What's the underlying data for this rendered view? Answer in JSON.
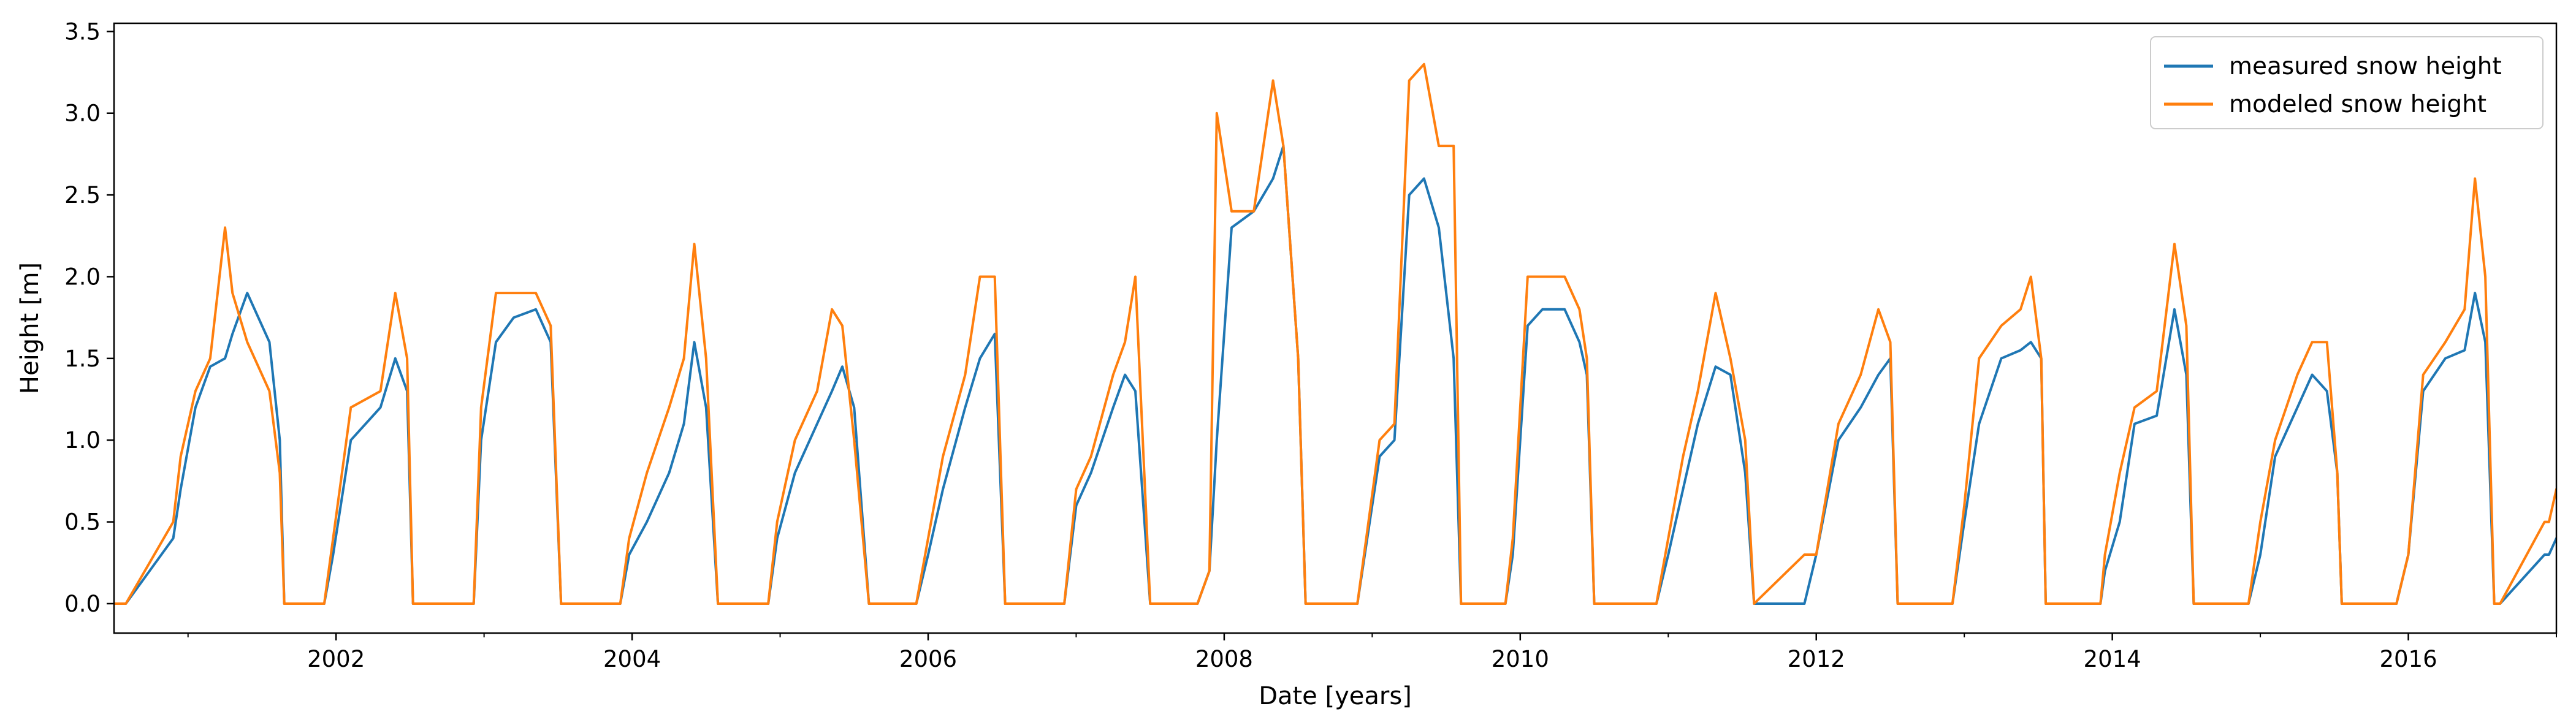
{
  "chart_data": {
    "type": "line",
    "title": "",
    "xlabel": "Date [years]",
    "ylabel": "Height [m]",
    "xlim": [
      2000.5,
      2017.0
    ],
    "ylim": [
      -0.18,
      3.55
    ],
    "x_ticks": [
      2002,
      2004,
      2006,
      2008,
      2010,
      2012,
      2014,
      2016
    ],
    "x_tick_labels": [
      "2002",
      "2004",
      "2006",
      "2008",
      "2010",
      "2012",
      "2014",
      "2016"
    ],
    "y_ticks": [
      0.0,
      0.5,
      1.0,
      1.5,
      2.0,
      2.5,
      3.0,
      3.5
    ],
    "y_tick_labels": [
      "0.0",
      "0.5",
      "1.0",
      "1.5",
      "2.0",
      "2.5",
      "3.0",
      "3.5"
    ],
    "grid": false,
    "legend": {
      "position": "top-right"
    },
    "series": [
      {
        "name": "measured snow height",
        "color": "#1f77b4",
        "x": [
          2000.5,
          2000.58,
          2000.9,
          2000.95,
          2001.05,
          2001.15,
          2001.25,
          2001.3,
          2001.4,
          2001.55,
          2001.62,
          2001.65,
          2001.92,
          2001.98,
          2002.1,
          2002.3,
          2002.4,
          2002.48,
          2002.52,
          2002.93,
          2002.98,
          2003.08,
          2003.2,
          2003.35,
          2003.45,
          2003.52,
          2003.92,
          2003.98,
          2004.1,
          2004.25,
          2004.35,
          2004.42,
          2004.5,
          2004.58,
          2004.92,
          2004.98,
          2005.1,
          2005.25,
          2005.35,
          2005.42,
          2005.5,
          2005.6,
          2005.92,
          2006.0,
          2006.1,
          2006.25,
          2006.35,
          2006.45,
          2006.52,
          2006.92,
          2007.0,
          2007.1,
          2007.25,
          2007.33,
          2007.4,
          2007.5,
          2007.82,
          2007.9,
          2007.95,
          2008.05,
          2008.2,
          2008.33,
          2008.4,
          2008.5,
          2008.55,
          2008.9,
          2009.05,
          2009.15,
          2009.25,
          2009.35,
          2009.45,
          2009.55,
          2009.6,
          2009.9,
          2009.95,
          2010.05,
          2010.15,
          2010.3,
          2010.4,
          2010.45,
          2010.5,
          2010.92,
          2011.0,
          2011.1,
          2011.2,
          2011.32,
          2011.42,
          2011.52,
          2011.58,
          2011.92,
          2012.0,
          2012.15,
          2012.3,
          2012.42,
          2012.5,
          2012.55,
          2012.92,
          2013.0,
          2013.1,
          2013.25,
          2013.38,
          2013.45,
          2013.52,
          2013.55,
          2013.92,
          2013.95,
          2014.05,
          2014.15,
          2014.3,
          2014.42,
          2014.5,
          2014.55,
          2014.92,
          2015.0,
          2015.1,
          2015.25,
          2015.35,
          2015.45,
          2015.52,
          2015.55,
          2015.92,
          2016.0,
          2016.1,
          2016.25,
          2016.38,
          2016.45,
          2016.52,
          2016.58,
          2016.62,
          2016.92,
          2016.95,
          2017.0
        ],
        "y": [
          0.0,
          0.0,
          0.4,
          0.7,
          1.2,
          1.45,
          1.5,
          1.65,
          1.9,
          1.6,
          1.0,
          0.0,
          0.0,
          0.3,
          1.0,
          1.2,
          1.5,
          1.3,
          0.0,
          0.0,
          1.0,
          1.6,
          1.75,
          1.8,
          1.6,
          0.0,
          0.0,
          0.3,
          0.5,
          0.8,
          1.1,
          1.6,
          1.2,
          0.0,
          0.0,
          0.4,
          0.8,
          1.1,
          1.3,
          1.45,
          1.2,
          0.0,
          0.0,
          0.3,
          0.7,
          1.2,
          1.5,
          1.65,
          0.0,
          0.0,
          0.6,
          0.8,
          1.2,
          1.4,
          1.3,
          0.0,
          0.0,
          0.2,
          1.0,
          2.3,
          2.4,
          2.6,
          2.8,
          1.5,
          0.0,
          0.0,
          0.9,
          1.0,
          2.5,
          2.6,
          2.3,
          1.5,
          0.0,
          0.0,
          0.3,
          1.7,
          1.8,
          1.8,
          1.6,
          1.4,
          0.0,
          0.0,
          0.3,
          0.7,
          1.1,
          1.45,
          1.4,
          0.8,
          0.0,
          0.0,
          0.3,
          1.0,
          1.2,
          1.4,
          1.5,
          0.0,
          0.0,
          0.5,
          1.1,
          1.5,
          1.55,
          1.6,
          1.5,
          0.0,
          0.0,
          0.2,
          0.5,
          1.1,
          1.15,
          1.8,
          1.4,
          0.0,
          0.0,
          0.3,
          0.9,
          1.2,
          1.4,
          1.3,
          0.8,
          0.0,
          0.0,
          0.3,
          1.3,
          1.5,
          1.55,
          1.9,
          1.6,
          0.0,
          0.0,
          0.3,
          0.3,
          0.4
        ]
      },
      {
        "name": "modeled snow height",
        "color": "#ff7f0e",
        "x": [
          2000.5,
          2000.58,
          2000.9,
          2000.95,
          2001.05,
          2001.15,
          2001.25,
          2001.3,
          2001.4,
          2001.55,
          2001.62,
          2001.65,
          2001.92,
          2001.98,
          2002.1,
          2002.3,
          2002.4,
          2002.48,
          2002.52,
          2002.93,
          2002.98,
          2003.08,
          2003.2,
          2003.35,
          2003.45,
          2003.52,
          2003.92,
          2003.98,
          2004.1,
          2004.25,
          2004.35,
          2004.42,
          2004.5,
          2004.58,
          2004.92,
          2004.98,
          2005.1,
          2005.25,
          2005.35,
          2005.42,
          2005.5,
          2005.6,
          2005.92,
          2006.0,
          2006.1,
          2006.25,
          2006.35,
          2006.45,
          2006.52,
          2006.92,
          2007.0,
          2007.1,
          2007.25,
          2007.33,
          2007.4,
          2007.5,
          2007.82,
          2007.9,
          2007.95,
          2008.05,
          2008.2,
          2008.33,
          2008.4,
          2008.5,
          2008.55,
          2008.9,
          2009.05,
          2009.15,
          2009.25,
          2009.35,
          2009.45,
          2009.55,
          2009.6,
          2009.9,
          2009.95,
          2010.05,
          2010.15,
          2010.3,
          2010.4,
          2010.45,
          2010.5,
          2010.92,
          2011.0,
          2011.1,
          2011.2,
          2011.32,
          2011.42,
          2011.52,
          2011.58,
          2011.92,
          2012.0,
          2012.15,
          2012.3,
          2012.42,
          2012.5,
          2012.55,
          2012.92,
          2013.0,
          2013.1,
          2013.25,
          2013.38,
          2013.45,
          2013.52,
          2013.55,
          2013.92,
          2013.95,
          2014.05,
          2014.15,
          2014.3,
          2014.42,
          2014.5,
          2014.55,
          2014.92,
          2015.0,
          2015.1,
          2015.25,
          2015.35,
          2015.45,
          2015.52,
          2015.55,
          2015.92,
          2016.0,
          2016.1,
          2016.25,
          2016.38,
          2016.45,
          2016.52,
          2016.58,
          2016.62,
          2016.92,
          2016.95,
          2017.0
        ],
        "y": [
          0.0,
          0.0,
          0.5,
          0.9,
          1.3,
          1.5,
          2.3,
          1.9,
          1.6,
          1.3,
          0.8,
          0.0,
          0.0,
          0.4,
          1.2,
          1.3,
          1.9,
          1.5,
          0.0,
          0.0,
          1.2,
          1.9,
          1.9,
          1.9,
          1.7,
          0.0,
          0.0,
          0.4,
          0.8,
          1.2,
          1.5,
          2.2,
          1.5,
          0.0,
          0.0,
          0.5,
          1.0,
          1.3,
          1.8,
          1.7,
          1.0,
          0.0,
          0.0,
          0.4,
          0.9,
          1.4,
          2.0,
          2.0,
          0.0,
          0.0,
          0.7,
          0.9,
          1.4,
          1.6,
          2.0,
          0.0,
          0.0,
          0.2,
          3.0,
          2.4,
          2.4,
          3.2,
          2.8,
          1.5,
          0.0,
          0.0,
          1.0,
          1.1,
          3.2,
          3.3,
          2.8,
          2.8,
          0.0,
          0.0,
          0.4,
          2.0,
          2.0,
          2.0,
          1.8,
          1.5,
          0.0,
          0.0,
          0.4,
          0.9,
          1.3,
          1.9,
          1.5,
          1.0,
          0.0,
          0.3,
          0.3,
          1.1,
          1.4,
          1.8,
          1.6,
          0.0,
          0.0,
          0.6,
          1.5,
          1.7,
          1.8,
          2.0,
          1.5,
          0.0,
          0.0,
          0.3,
          0.8,
          1.2,
          1.3,
          2.2,
          1.7,
          0.0,
          0.0,
          0.5,
          1.0,
          1.4,
          1.6,
          1.6,
          0.8,
          0.0,
          0.0,
          0.3,
          1.4,
          1.6,
          1.8,
          2.6,
          2.0,
          0.0,
          0.0,
          0.5,
          0.5,
          0.7
        ]
      }
    ]
  }
}
